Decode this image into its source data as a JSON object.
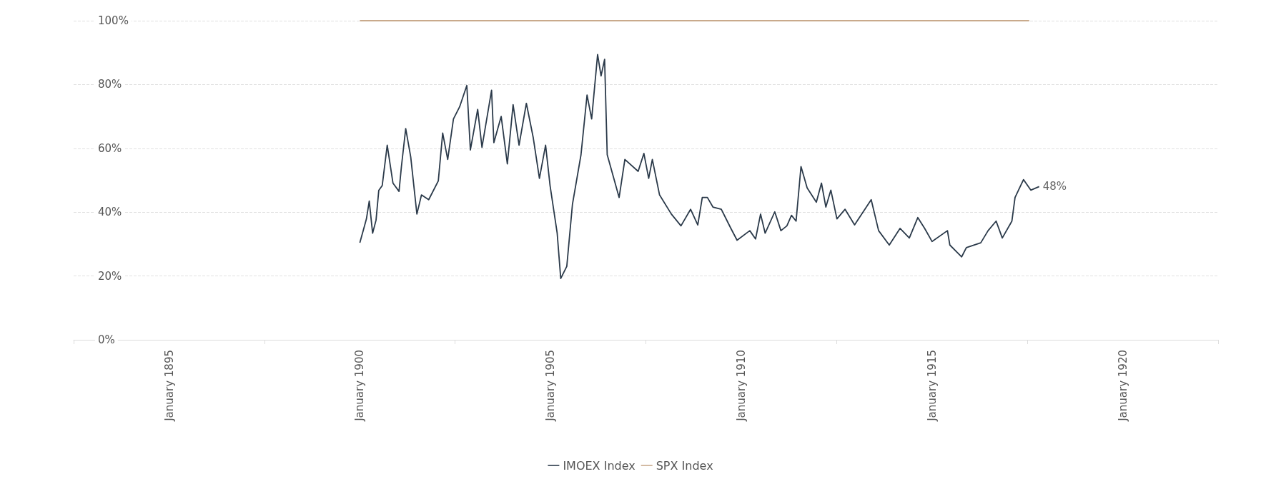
{
  "chart_data": {
    "type": "line",
    "marker": "none",
    "grid": "y",
    "legend": "bottom",
    "xlim": [
      "1892-07-01",
      "1922-07-01"
    ],
    "xticks": [
      {
        "value": "1892-07-01",
        "label": null
      },
      {
        "value": "1895-01-01",
        "label": "January 1895"
      },
      {
        "value": "1897-07-01",
        "label": null
      },
      {
        "value": "1900-01-01",
        "label": "January 1900"
      },
      {
        "value": "1902-07-01",
        "label": null
      },
      {
        "value": "1905-01-01",
        "label": "January 1905"
      },
      {
        "value": "1907-07-01",
        "label": null
      },
      {
        "value": "1910-01-01",
        "label": "January 1910"
      },
      {
        "value": "1912-07-01",
        "label": null
      },
      {
        "value": "1915-01-01",
        "label": "January 1915"
      },
      {
        "value": "1917-07-01",
        "label": null
      },
      {
        "value": "1920-01-01",
        "label": "January 1920"
      },
      {
        "value": "1922-07-01",
        "label": null
      }
    ],
    "ylim": [
      0,
      100
    ],
    "yticks": [
      {
        "value": 0,
        "label": "0%"
      },
      {
        "value": 20,
        "label": "20%"
      },
      {
        "value": 40,
        "label": "40%"
      },
      {
        "value": 60,
        "label": "60%"
      },
      {
        "value": 80,
        "label": "80%"
      },
      {
        "value": 100,
        "label": "100%"
      }
    ],
    "series": [
      {
        "name": "IMOEX Index",
        "color": "#2b3a4a",
        "x": [
          "1900-01-01",
          "1900-03-05",
          "1900-04-01",
          "1900-05-03",
          "1900-06-05",
          "1900-07-01",
          "1900-08-03",
          "1900-09-20",
          "1900-11-14",
          "1901-01-11",
          "1901-02-03",
          "1901-03-16",
          "1901-05-03",
          "1901-07-01",
          "1901-08-14",
          "1901-10-22",
          "1902-01-22",
          "1902-03-05",
          "1902-04-22",
          "1902-06-16",
          "1902-08-14",
          "1902-10-22",
          "1902-11-25",
          "1903-02-03",
          "1903-03-16",
          "1903-06-16",
          "1903-07-08",
          "1903-09-16",
          "1903-11-14",
          "1904-01-08",
          "1904-03-05",
          "1904-05-14",
          "1904-07-19",
          "1904-09-16",
          "1904-11-14",
          "1904-12-27",
          "1905-03-05",
          "1905-04-08",
          "1905-06-05",
          "1905-07-29",
          "1905-10-19",
          "1905-12-16",
          "1906-01-29",
          "1906-03-27",
          "1906-04-29",
          "1906-06-02",
          "1906-06-27",
          "1906-10-19",
          "1906-12-13",
          "1907-04-19",
          "1907-06-13",
          "1907-07-29",
          "1907-09-02",
          "1907-11-10",
          "1908-03-02",
          "1908-06-02",
          "1908-09-02",
          "1908-11-10",
          "1908-12-23",
          "1909-02-10",
          "1909-04-04",
          "1909-06-23",
          "1909-09-23",
          "1909-11-21",
          "1910-03-23",
          "1910-05-17",
          "1910-07-04",
          "1910-08-17",
          "1910-11-17",
          "1911-01-15",
          "1911-03-13",
          "1911-04-26",
          "1911-06-09",
          "1911-07-26",
          "1911-09-23",
          "1911-12-20",
          "1912-02-07",
          "1912-03-20",
          "1912-05-07",
          "1912-07-04",
          "1912-09-20",
          "1912-12-20",
          "1913-05-28",
          "1913-08-07",
          "1913-11-17",
          "1914-02-28",
          "1914-05-28",
          "1914-08-17",
          "1914-10-22",
          "1915-01-01",
          "1915-05-28",
          "1915-06-20",
          "1915-10-11",
          "1915-11-25",
          "1916-04-11",
          "1916-06-20",
          "1916-09-05",
          "1916-11-03",
          "1917-02-03",
          "1917-03-05",
          "1917-05-25",
          "1917-08-03",
          "1917-10-22"
        ],
        "values": [
          30.4,
          37.9,
          43.5,
          33.4,
          37.5,
          46.8,
          48.3,
          61.0,
          49.1,
          46.5,
          54.3,
          66.2,
          57.3,
          39.4,
          45.4,
          43.9,
          49.8,
          64.8,
          56.5,
          69.2,
          73.0,
          79.7,
          59.5,
          72.2,
          60.3,
          78.2,
          61.8,
          70.0,
          55.1,
          73.7,
          61.0,
          74.1,
          63.3,
          50.6,
          61.0,
          48.3,
          33.4,
          19.2,
          23.0,
          42.4,
          58.0,
          76.7,
          69.2,
          89.4,
          82.7,
          87.9,
          58.0,
          44.6,
          56.5,
          52.8,
          58.4,
          50.6,
          56.5,
          45.4,
          39.4,
          35.7,
          40.9,
          36.0,
          44.6,
          44.6,
          41.6,
          40.9,
          34.9,
          31.2,
          34.2,
          31.6,
          39.4,
          33.4,
          40.1,
          34.2,
          35.7,
          39.0,
          37.2,
          54.3,
          47.6,
          43.1,
          49.1,
          41.6,
          46.9,
          37.9,
          40.9,
          36.0,
          43.9,
          34.2,
          29.7,
          34.9,
          31.9,
          38.3,
          34.9,
          30.8,
          34.2,
          29.7,
          26.0,
          28.9,
          30.4,
          34.2,
          37.2,
          31.9,
          37.2,
          44.6,
          50.2,
          46.9,
          48
        ],
        "value_labels": [
          null,
          null,
          null,
          null,
          null,
          null,
          null,
          null,
          null,
          null,
          null,
          null,
          null,
          null,
          null,
          null,
          null,
          null,
          null,
          null,
          null,
          null,
          null,
          null,
          null,
          null,
          null,
          null,
          null,
          null,
          null,
          null,
          null,
          null,
          null,
          null,
          null,
          null,
          null,
          null,
          null,
          null,
          null,
          null,
          null,
          null,
          null,
          null,
          null,
          null,
          null,
          null,
          null,
          null,
          null,
          null,
          null,
          null,
          null,
          null,
          null,
          null,
          null,
          null,
          null,
          null,
          null,
          null,
          null,
          null,
          null,
          null,
          null,
          null,
          null,
          null,
          null,
          null,
          null,
          null,
          null,
          null,
          null,
          null,
          null,
          null,
          null,
          null,
          null,
          null,
          null,
          null,
          null,
          null,
          null,
          null,
          null,
          null,
          null,
          null,
          null,
          null,
          "48%"
        ]
      },
      {
        "name": "SPX Index",
        "color": "#c9aa8c",
        "x": [
          "1900-01-01",
          "1917-07-19"
        ],
        "values": [
          100,
          100
        ]
      }
    ]
  }
}
